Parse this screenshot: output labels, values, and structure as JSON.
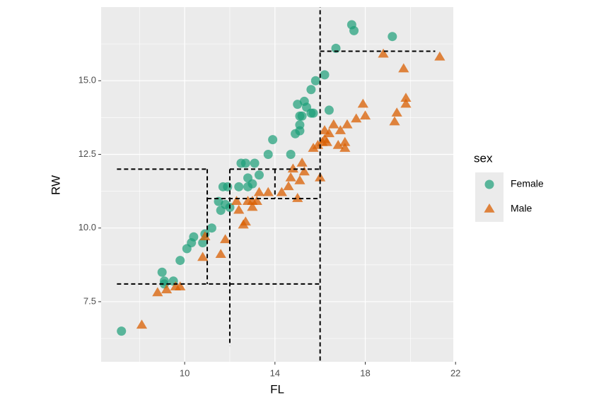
{
  "chart_data": {
    "type": "scatter",
    "x_label": "FL",
    "y_label": "RW",
    "legend_title": "sex",
    "legend": "right",
    "xlim": [
      6.3,
      21.9
    ],
    "ylim": [
      5.46,
      17.5
    ],
    "xticks": [
      10,
      14,
      18,
      22
    ],
    "yticks": [
      {
        "value": 7.5,
        "label": "7.5"
      },
      {
        "value": 10,
        "label": "10.0"
      },
      {
        "value": 12.5,
        "label": "12.5"
      },
      {
        "value": 15,
        "label": "15.0"
      }
    ],
    "x_minor_grid": [
      8,
      12,
      16,
      20
    ],
    "y_minor_grid": [
      6.25,
      8.75,
      11.25,
      13.75,
      16.25
    ],
    "grid": true,
    "series": [
      {
        "name": "Female",
        "color": "#1b9e77",
        "marker": "circle",
        "x": [
          7.2,
          9.0,
          9.1,
          9.1,
          9.5,
          9.8,
          10.1,
          10.3,
          10.4,
          10.8,
          10.9,
          11.2,
          11.5,
          11.6,
          11.7,
          11.8,
          11.9,
          12.0,
          12.4,
          12.5,
          12.7,
          12.8,
          12.8,
          13.0,
          13.1,
          13.3,
          13.7,
          13.9,
          14.7,
          14.9,
          15.0,
          15.1,
          15.1,
          15.1,
          15.2,
          15.3,
          15.4,
          15.6,
          15.7,
          15.6,
          15.8,
          16.2,
          16.4,
          16.7,
          17.4,
          17.5,
          19.2
        ],
        "values": [
          6.5,
          8.5,
          8.2,
          8.1,
          8.2,
          8.9,
          9.3,
          9.5,
          9.7,
          9.5,
          9.8,
          10.0,
          10.9,
          10.6,
          11.4,
          10.8,
          11.4,
          10.7,
          11.4,
          12.2,
          12.2,
          11.7,
          11.4,
          11.5,
          12.2,
          11.8,
          12.5,
          13.0,
          12.5,
          13.2,
          14.2,
          13.8,
          13.3,
          13.5,
          13.8,
          14.3,
          14.1,
          13.9,
          13.9,
          14.7,
          15.0,
          15.2,
          14.0,
          16.1,
          16.9,
          16.7,
          16.5
        ]
      },
      {
        "name": "Male",
        "color": "#d95f02",
        "marker": "triangle",
        "x": [
          8.1,
          8.8,
          9.2,
          9.6,
          9.8,
          10.8,
          10.9,
          11.6,
          11.8,
          12.3,
          12.4,
          12.6,
          12.7,
          12.8,
          13.0,
          13.0,
          13.2,
          13.3,
          13.7,
          14.3,
          14.6,
          14.7,
          14.8,
          15.0,
          15.1,
          15.2,
          15.3,
          15.7,
          16.0,
          15.9,
          16.1,
          16.2,
          16.2,
          16.3,
          16.4,
          16.6,
          16.8,
          16.9,
          17.1,
          17.1,
          17.2,
          17.6,
          17.9,
          18.0,
          18.8,
          19.3,
          19.4,
          19.7,
          19.8,
          19.8,
          21.3
        ],
        "values": [
          6.7,
          7.8,
          7.9,
          8.0,
          8.0,
          9.0,
          9.7,
          9.1,
          9.6,
          10.9,
          10.6,
          10.1,
          10.2,
          10.9,
          10.9,
          10.7,
          10.9,
          11.2,
          11.2,
          11.2,
          11.4,
          11.7,
          12.0,
          11.0,
          11.6,
          12.2,
          11.9,
          12.7,
          11.7,
          12.8,
          12.9,
          13.0,
          13.3,
          12.9,
          13.2,
          13.5,
          12.8,
          13.3,
          12.9,
          12.7,
          13.5,
          13.7,
          14.2,
          13.8,
          15.9,
          13.6,
          13.9,
          15.4,
          14.4,
          14.2,
          15.8
        ]
      }
    ],
    "segments": [
      {
        "x": [
          16,
          16
        ],
        "y": [
          5.5,
          17.5
        ]
      },
      {
        "x": [
          16,
          21.1
        ],
        "y": [
          16.0,
          16.0
        ]
      },
      {
        "x": [
          7.0,
          11.0
        ],
        "y": [
          12.0,
          12.0
        ]
      },
      {
        "x": [
          11.0,
          11.0
        ],
        "y": [
          12.0,
          8.1
        ]
      },
      {
        "x": [
          7.0,
          16.0
        ],
        "y": [
          8.1,
          8.1
        ]
      },
      {
        "x": [
          12.0,
          12.0
        ],
        "y": [
          12.0,
          6.0
        ]
      },
      {
        "x": [
          12.0,
          16.0
        ],
        "y": [
          12.0,
          12.0
        ]
      },
      {
        "x": [
          14.0,
          14.0
        ],
        "y": [
          12.0,
          11.0
        ]
      },
      {
        "x": [
          11.0,
          16.0
        ],
        "y": [
          11.0,
          11.0
        ]
      }
    ]
  }
}
